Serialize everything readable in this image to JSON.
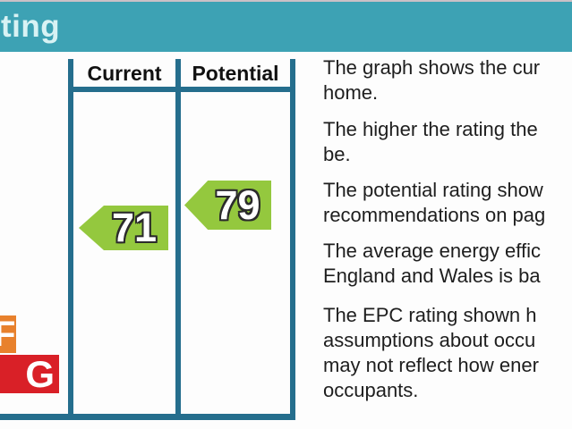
{
  "header": {
    "title_partial": "ting",
    "bar_color": "#3da2b4",
    "text_color": "#d8f2f4"
  },
  "chart": {
    "column_headers": [
      "Current",
      "Potential"
    ],
    "current": {
      "value": "71"
    },
    "potential": {
      "value": "79"
    },
    "arrow_color": "#94c83e",
    "frame_line_color": "#256e8d",
    "bands": [
      {
        "letter": "F",
        "color": "#e8812d"
      },
      {
        "letter": "G",
        "color": "#d92027"
      }
    ]
  },
  "description": {
    "paragraphs": [
      {
        "lines": [
          "The graph shows the cur",
          "home."
        ]
      },
      {
        "lines": [
          "The higher the rating the",
          "be."
        ]
      },
      {
        "lines": [
          "The potential rating show",
          "recommendations on pag"
        ]
      },
      {
        "lines": [
          "The average energy effic",
          "England and Wales is ba"
        ]
      },
      {
        "lines": [
          "The EPC rating shown h",
          "assumptions about occu",
          "may not reflect how ener",
          "occupants."
        ]
      }
    ]
  },
  "chart_data": {
    "type": "bar",
    "categories": [
      "Current",
      "Potential"
    ],
    "values": [
      71,
      79
    ],
    "title_visible": "ting",
    "visible_bands": [
      "F",
      "G"
    ],
    "band_colors": {
      "F": "#e8812d",
      "G": "#d92027"
    },
    "arrow_color": "#94c83e",
    "notes": "EPC energy efficiency rating graph; current rating 71 and potential rating 79 shown as left-pointing green arrows; bands F and G partially visible at cropped left edge"
  }
}
